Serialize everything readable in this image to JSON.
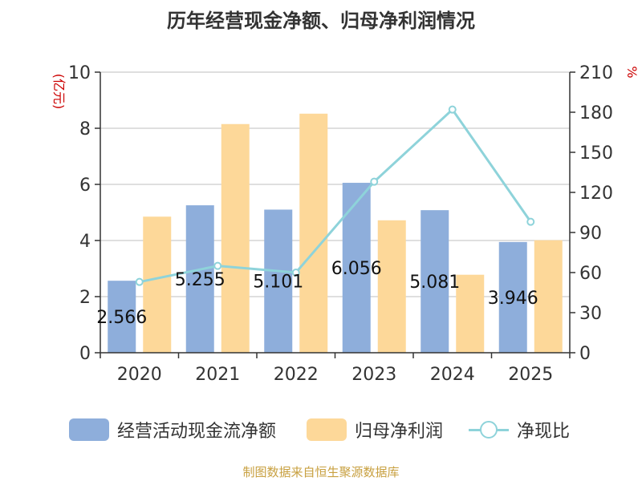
{
  "title": "历年经营现金净额、归母净利润情况",
  "source": "制图数据来自恒生聚源数据库",
  "chart_data": {
    "type": "bar",
    "title": "历年经营现金净额、归母净利润情况",
    "categories": [
      "2020",
      "2021",
      "2022",
      "2023",
      "2024",
      "2025"
    ],
    "y_left_label": "(亿元)",
    "y_left_range": [
      0,
      10
    ],
    "y_left_ticks": [
      "0",
      "2",
      "4",
      "6",
      "8",
      "10"
    ],
    "y_right_label": "%",
    "y_right_range": [
      0,
      210
    ],
    "y_right_ticks": [
      "0",
      "30",
      "60",
      "90",
      "120",
      "150",
      "180",
      "210"
    ],
    "grid": true,
    "legend_position": "bottom",
    "series": [
      {
        "name": "经营活动现金流净额",
        "type": "bar",
        "axis": "left",
        "color": "#8eaedb",
        "values": [
          2.566,
          5.255,
          5.101,
          6.056,
          5.081,
          3.946
        ],
        "labels": [
          "2.566",
          "5.255",
          "5.101",
          "6.056",
          "5.081",
          "3.946"
        ]
      },
      {
        "name": "归母净利润",
        "type": "bar",
        "axis": "left",
        "color": "#fdd899",
        "values": [
          4.85,
          8.15,
          8.52,
          4.72,
          2.78,
          4.01
        ]
      },
      {
        "name": "净现比",
        "type": "line",
        "axis": "right",
        "color": "#8ed3da",
        "values": [
          53,
          65,
          60,
          128,
          182,
          98
        ]
      }
    ]
  }
}
